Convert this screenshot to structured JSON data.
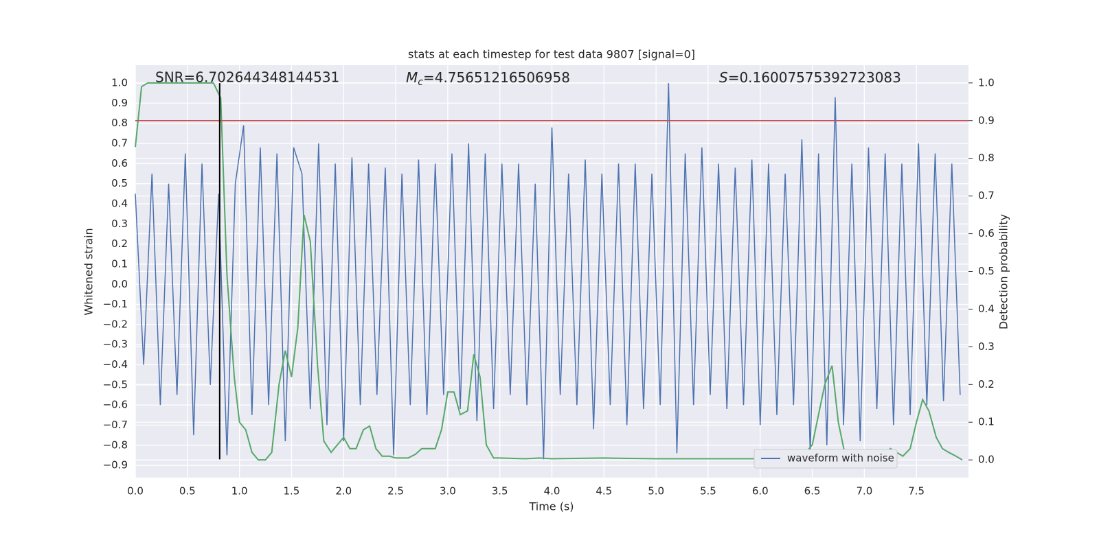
{
  "chart_data": {
    "type": "line",
    "title": "stats at each timestep for test data 9807 [signal=0]",
    "xlabel": "Time (s)",
    "ylabel": "Whitened strain",
    "y2label": "Detection probability",
    "annotations": {
      "snr": "SNR=6.702644348144531",
      "mc": {
        "symbol": "M",
        "subscript": "c",
        "text": "=4.75651216506958"
      },
      "s": {
        "symbol": "S",
        "text": "=0.16007575392723083"
      }
    },
    "xlim": [
      0,
      8.0
    ],
    "ylim": [
      -0.961,
      1.089
    ],
    "y2lim": [
      -0.047,
      1.047
    ],
    "xticks": [
      {
        "value": 0,
        "label": "0.0"
      },
      0.5,
      {
        "value": 1,
        "label": "1.0"
      },
      1.5,
      {
        "value": 2,
        "label": "2.0"
      },
      2.5,
      {
        "value": 3,
        "label": "3.0"
      },
      3.5,
      {
        "value": 4,
        "label": "4.0"
      },
      4.5,
      {
        "value": 5,
        "label": "5.0"
      },
      5.5,
      {
        "value": 6,
        "label": "6.0"
      },
      6.5,
      {
        "value": 7,
        "label": "7.0"
      },
      7.5
    ],
    "yticks": [
      {
        "value": -0.9,
        "label": "−0.9"
      },
      {
        "value": -0.8,
        "label": "−0.8"
      },
      {
        "value": -0.7,
        "label": "−0.7"
      },
      {
        "value": -0.6,
        "label": "−0.6"
      },
      {
        "value": -0.5,
        "label": "−0.5"
      },
      {
        "value": -0.4,
        "label": "−0.4"
      },
      {
        "value": -0.3,
        "label": "−0.3"
      },
      {
        "value": -0.2,
        "label": "−0.2"
      },
      {
        "value": -0.1,
        "label": "−0.1"
      },
      {
        "value": 0,
        "label": "0.0"
      },
      0.1,
      0.2,
      0.3,
      0.4,
      0.5,
      0.6,
      0.7,
      0.8,
      0.9,
      {
        "value": 1,
        "label": "1.0"
      }
    ],
    "y2ticks": [
      {
        "value": 0,
        "label": "0.0"
      },
      0.1,
      0.2,
      0.3,
      0.4,
      0.5,
      0.6,
      0.7,
      0.8,
      0.9,
      {
        "value": 1,
        "label": "1.0"
      }
    ],
    "grid": true,
    "legend": "lower right",
    "series": [
      {
        "name": "waveform with noise",
        "color": "#4c72b0",
        "x": [
          0,
          0.08,
          0.16,
          0.24,
          0.32,
          0.4,
          0.48,
          0.56,
          0.64,
          0.72,
          0.8,
          0.88,
          0.96,
          1.04,
          1.12,
          1.2,
          1.28,
          1.36,
          1.44,
          1.52,
          1.6,
          1.68,
          1.76,
          1.84,
          1.92,
          2.0,
          2.08,
          2.16,
          2.24,
          2.32,
          2.4,
          2.48,
          2.56,
          2.64,
          2.72,
          2.8,
          2.88,
          2.96,
          3.04,
          3.12,
          3.2,
          3.28,
          3.36,
          3.44,
          3.52,
          3.6,
          3.68,
          3.76,
          3.84,
          3.92,
          4.0,
          4.08,
          4.16,
          4.24,
          4.32,
          4.4,
          4.48,
          4.56,
          4.64,
          4.72,
          4.8,
          4.88,
          4.96,
          5.04,
          5.12,
          5.2,
          5.28,
          5.36,
          5.44,
          5.52,
          5.6,
          5.68,
          5.76,
          5.84,
          5.92,
          6.0,
          6.08,
          6.16,
          6.24,
          6.32,
          6.4,
          6.48,
          6.56,
          6.64,
          6.72,
          6.8,
          6.88,
          6.96,
          7.04,
          7.12,
          7.2,
          7.28,
          7.36,
          7.44,
          7.52,
          7.6,
          7.68,
          7.76,
          7.84,
          7.92
        ],
        "values": [
          0.45,
          -0.4,
          0.55,
          -0.6,
          0.5,
          -0.55,
          0.65,
          -0.75,
          0.6,
          -0.5,
          0.45,
          -0.85,
          0.5,
          0.79,
          -0.65,
          0.68,
          -0.6,
          0.65,
          -0.78,
          0.68,
          0.55,
          -0.62,
          0.7,
          -0.7,
          0.6,
          -0.78,
          0.63,
          -0.6,
          0.6,
          -0.55,
          0.58,
          -0.85,
          0.55,
          -0.6,
          0.62,
          -0.65,
          0.6,
          -0.55,
          0.65,
          -0.62,
          0.7,
          -0.68,
          0.65,
          -0.62,
          0.6,
          -0.55,
          0.6,
          -0.6,
          0.5,
          -0.87,
          0.78,
          -0.55,
          0.55,
          -0.6,
          0.62,
          -0.72,
          0.55,
          -0.6,
          0.6,
          -0.7,
          0.6,
          -0.62,
          0.55,
          -0.6,
          1.0,
          -0.84,
          0.65,
          -0.6,
          0.68,
          -0.55,
          0.6,
          -0.62,
          0.58,
          -0.6,
          0.62,
          -0.7,
          0.6,
          -0.65,
          0.55,
          -0.6,
          0.72,
          -0.84,
          0.65,
          -0.8,
          0.93,
          -0.7,
          0.6,
          -0.78,
          0.68,
          -0.62,
          0.65,
          -0.7,
          0.6,
          -0.65,
          0.7,
          -0.6,
          0.65,
          -0.58,
          0.6,
          -0.55
        ]
      },
      {
        "color": "#55a868",
        "axis": "y2",
        "x": [
          0,
          0.06,
          0.12,
          0.19,
          0.25,
          0.31,
          0.38,
          0.44,
          0.5,
          0.56,
          0.62,
          0.69,
          0.75,
          0.82,
          0.88,
          0.95,
          1.0,
          1.06,
          1.12,
          1.18,
          1.25,
          1.31,
          1.38,
          1.44,
          1.5,
          1.56,
          1.62,
          1.68,
          1.75,
          1.81,
          1.88,
          1.94,
          2.0,
          2.06,
          2.12,
          2.19,
          2.25,
          2.31,
          2.37,
          2.44,
          2.5,
          2.56,
          2.62,
          2.69,
          2.75,
          2.81,
          2.88,
          2.94,
          3.0,
          3.06,
          3.12,
          3.19,
          3.25,
          3.31,
          3.37,
          3.44,
          3.5,
          3.75,
          3.88,
          4.0,
          4.5,
          5.0,
          5.5,
          6.0,
          6.3,
          6.44,
          6.5,
          6.56,
          6.62,
          6.69,
          6.75,
          6.81,
          6.88,
          6.94,
          7.0,
          7.06,
          7.12,
          7.19,
          7.25,
          7.31,
          7.37,
          7.44,
          7.5,
          7.56,
          7.62,
          7.69,
          7.75,
          7.81,
          7.88,
          7.94
        ],
        "values": [
          0.83,
          0.99,
          1.0,
          1.0,
          1.0,
          1.0,
          1.0,
          1.0,
          1.0,
          1.0,
          1.0,
          1.0,
          1.0,
          0.96,
          0.49,
          0.22,
          0.1,
          0.08,
          0.02,
          0.0,
          0.0,
          0.02,
          0.2,
          0.29,
          0.22,
          0.35,
          0.65,
          0.58,
          0.25,
          0.05,
          0.02,
          0.04,
          0.06,
          0.03,
          0.03,
          0.08,
          0.09,
          0.03,
          0.01,
          0.01,
          0.005,
          0.005,
          0.005,
          0.015,
          0.03,
          0.03,
          0.03,
          0.08,
          0.18,
          0.18,
          0.12,
          0.13,
          0.28,
          0.22,
          0.04,
          0.005,
          0.005,
          0.003,
          0.005,
          0.003,
          0.005,
          0.003,
          0.003,
          0.003,
          0.005,
          0.02,
          0.04,
          0.12,
          0.2,
          0.25,
          0.1,
          0.02,
          0.01,
          0.005,
          0.003,
          0.003,
          0.003,
          0.01,
          0.03,
          0.02,
          0.01,
          0.03,
          0.1,
          0.16,
          0.13,
          0.06,
          0.03,
          0.02,
          0.01,
          0.0
        ]
      }
    ],
    "hline": {
      "value": 0.9,
      "axis": "y2",
      "color": "#c44e52"
    },
    "vline": {
      "x": 0.81,
      "y": [
        -0.87,
        1.0
      ],
      "color": "#000000"
    }
  }
}
